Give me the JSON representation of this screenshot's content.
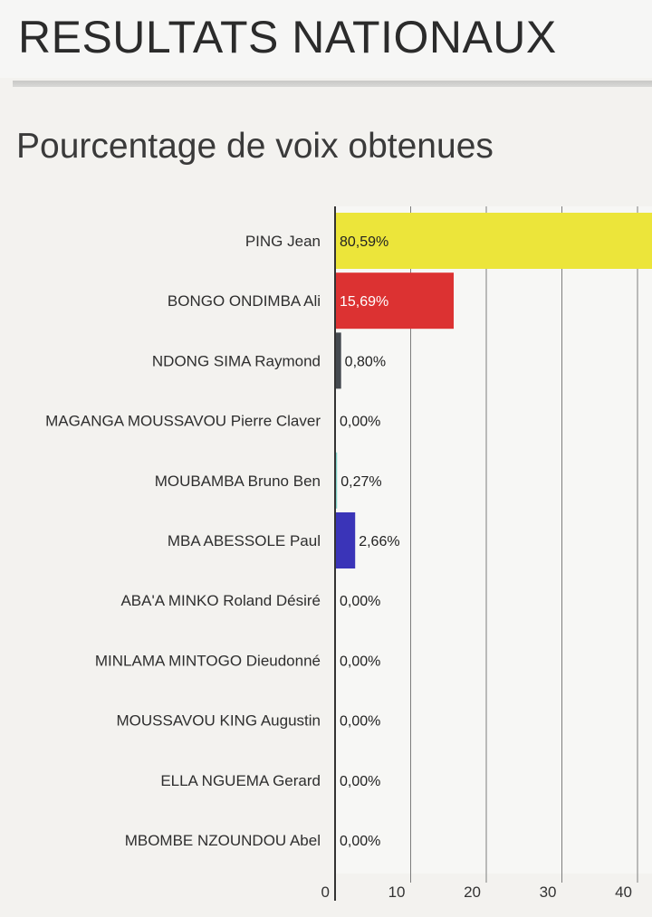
{
  "page": {
    "title": "RESULTATS NATIONAUX"
  },
  "chart_data": {
    "type": "bar",
    "orientation": "horizontal",
    "title": "Pourcentage de voix obtenues",
    "xlabel": "",
    "ylabel": "",
    "xlim": [
      0,
      40
    ],
    "x_ticks": [
      "0",
      "10",
      "20",
      "30",
      "40"
    ],
    "grid": true,
    "categories": [
      "PING Jean",
      "BONGO ONDIMBA Ali",
      "NDONG SIMA Raymond",
      "MAGANGA MOUSSAVOU Pierre Claver",
      "MOUBAMBA Bruno Ben",
      "MBA ABESSOLE Paul",
      "ABA'A MINKO Roland Désiré",
      "MINLAMA MINTOGO Dieudonné",
      "MOUSSAVOU KING Augustin",
      "ELLA NGUEMA Gerard",
      "MBOMBE NZOUNDOU Abel"
    ],
    "values": [
      80.59,
      15.69,
      0.8,
      0.0,
      0.27,
      2.66,
      0.0,
      0.0,
      0.0,
      0.0,
      0.0
    ],
    "value_labels": [
      "80,59%",
      "15,69%",
      "0,80%",
      "0,00%",
      "0,27%",
      "2,66%",
      "0,00%",
      "0,00%",
      "0,00%",
      "0,00%",
      "0,00%"
    ],
    "colors": [
      "#ece53a",
      "#dc3232",
      "#44494f",
      "#8a8a8a",
      "#7fd1c9",
      "#3a34b8",
      "#8a8a8a",
      "#8a8a8a",
      "#8a8a8a",
      "#8a8a8a",
      "#8a8a8a"
    ],
    "value_label_colors": [
      "#222222",
      "#ffffff",
      "#222222",
      "#222222",
      "#222222",
      "#222222",
      "#222222",
      "#222222",
      "#222222",
      "#222222",
      "#222222"
    ]
  }
}
